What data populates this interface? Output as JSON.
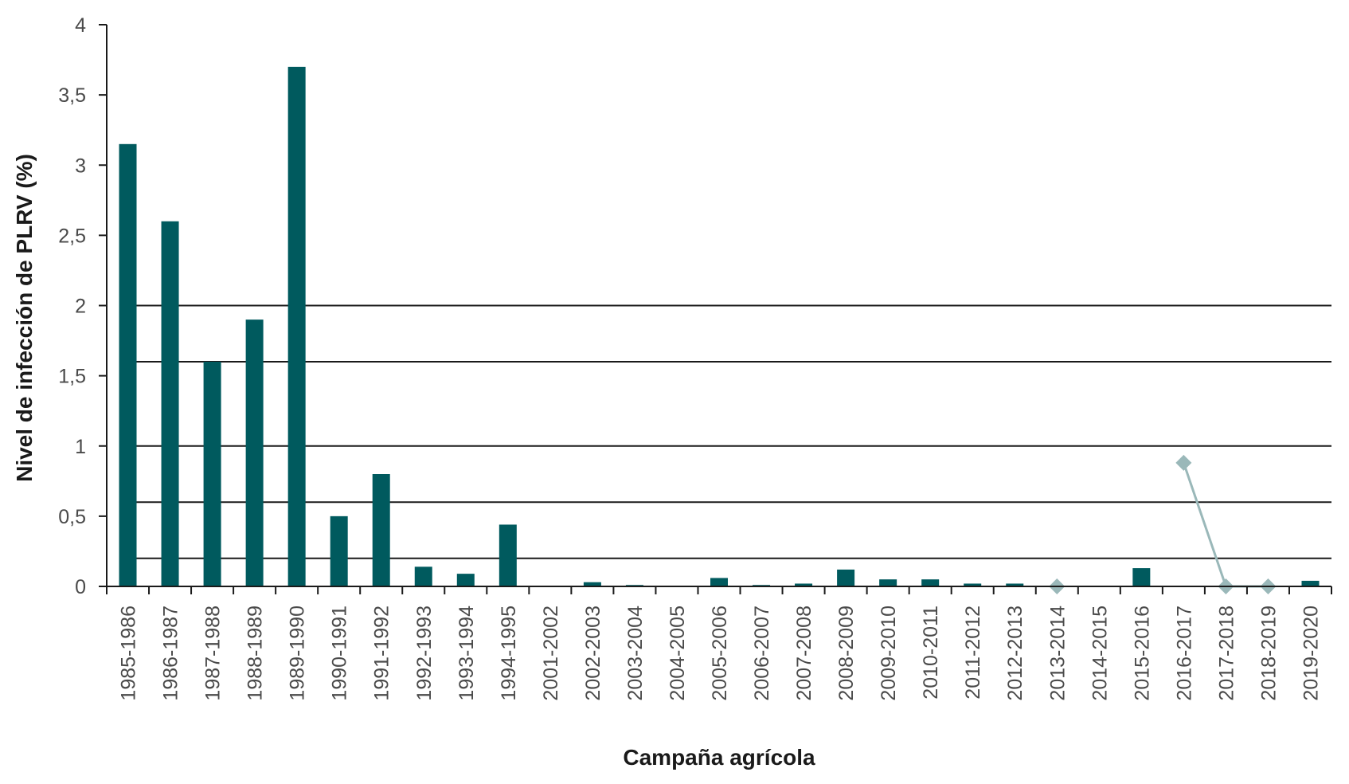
{
  "chart_data": {
    "type": "bar",
    "xlabel": "Campaña agrícola",
    "ylabel": "Nivel de infección de PLRV (%)",
    "ylim": [
      0,
      4
    ],
    "yticks": [
      "0",
      "0,5",
      "1",
      "1,5",
      "2",
      "2,5",
      "3",
      "3,5",
      "4"
    ],
    "ytick_values": [
      0,
      0.5,
      1,
      1.5,
      2,
      2.5,
      3,
      3.5,
      4
    ],
    "reference_lines": [
      2,
      1.6,
      1,
      0.6,
      0.2
    ],
    "categories": [
      "1985-1986",
      "1986-1987",
      "1987-1988",
      "1988-1989",
      "1989-1990",
      "1990-1991",
      "1991-1992",
      "1992-1993",
      "1993-1994",
      "1994-1995",
      "2001-2002",
      "2002-2003",
      "2003-2004",
      "2004-2005",
      "2005-2006",
      "2006-2007",
      "2007-2008",
      "2008-2009",
      "2009-2010",
      "2010-2011",
      "2011-2012",
      "2012-2013",
      "2013-2014",
      "2014-2015",
      "2015-2016",
      "2016-2017",
      "2017-2018",
      "2018-2019",
      "2019-2020"
    ],
    "series": [
      {
        "type": "bar",
        "color": "#005a5e",
        "values": [
          3.15,
          2.6,
          1.6,
          1.9,
          3.7,
          0.5,
          0.8,
          0.14,
          0.09,
          0.44,
          null,
          0.03,
          0.01,
          null,
          0.06,
          0.01,
          0.02,
          0.12,
          0.05,
          0.05,
          0.02,
          0.02,
          null,
          null,
          0.13,
          null,
          null,
          null,
          0.04
        ]
      },
      {
        "type": "line",
        "marker": "diamond",
        "color": "#9ab8b9",
        "values": [
          null,
          null,
          null,
          null,
          null,
          null,
          null,
          null,
          null,
          null,
          null,
          null,
          null,
          null,
          null,
          null,
          null,
          null,
          null,
          null,
          null,
          null,
          0,
          null,
          null,
          0.88,
          0,
          0,
          null
        ]
      }
    ],
    "grid": false,
    "legend": "none"
  }
}
